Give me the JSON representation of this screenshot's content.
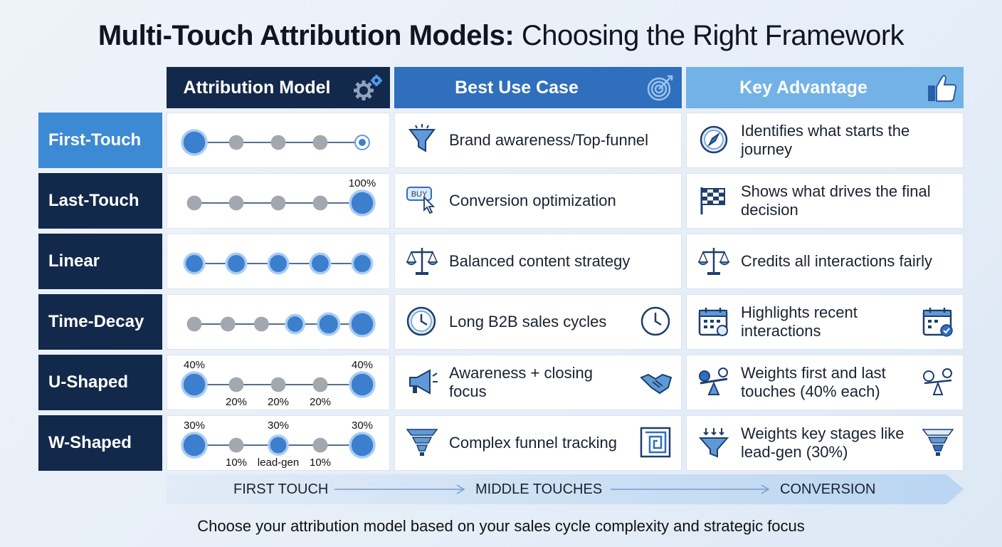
{
  "title": {
    "bold": "Multi-Touch Attribution Models:",
    "rest": " Choosing the Right Framework"
  },
  "headers": {
    "model": "Attribution Model",
    "use_case": "Best Use Case",
    "advantage": "Key Advantage"
  },
  "rows": [
    {
      "label": "First-Touch",
      "use_case": "Brand awareness/Top-funnel",
      "advantage": "Identifies what starts the journey",
      "icon_use": "funnel-icon",
      "icon_adv": "compass-icon",
      "dot_sizes": [
        1,
        0.4,
        0.4,
        0.4,
        0.4
      ],
      "labels_top": [],
      "labels_bottom": []
    },
    {
      "label": "Last-Touch",
      "use_case": "Conversion optimization",
      "advantage": "Shows what drives the final decision",
      "icon_use": "buy-button-icon",
      "icon_adv": "checkered-flag-icon",
      "dot_sizes": [
        0.4,
        0.4,
        0.4,
        0.4,
        1
      ],
      "labels_top": [
        "",
        "",
        "",
        "",
        "100%"
      ],
      "labels_bottom": []
    },
    {
      "label": "Linear",
      "use_case": "Balanced content strategy",
      "advantage": "Credits all interactions fairly",
      "icon_use": "scales-icon",
      "icon_adv": "scales-icon",
      "dot_sizes": [
        0.7,
        0.7,
        0.7,
        0.7,
        0.7
      ],
      "labels_top": [],
      "labels_bottom": []
    },
    {
      "label": "Time-Decay",
      "use_case": "Long B2B sales cycles",
      "advantage": "Highlights recent interactions",
      "icon_use": "clock-icon",
      "icon_adv": "calendar-icon",
      "dot_sizes": [
        0.4,
        0.4,
        0.4,
        0.6,
        0.8,
        1
      ],
      "labels_top": [],
      "labels_bottom": []
    },
    {
      "label": "U-Shaped",
      "use_case": "Awareness + closing focus",
      "advantage": "Weights first and last touches (40% each)",
      "icon_use": "megaphone-icon",
      "icon_adv": "balance-weights-icon",
      "dot_sizes": [
        1,
        0.4,
        0.4,
        0.4,
        1
      ],
      "labels_top": [
        "40%",
        "",
        "",
        "",
        "40%"
      ],
      "labels_bottom": [
        "",
        "20%",
        "20%",
        "20%",
        ""
      ]
    },
    {
      "label": "W-Shaped",
      "use_case": "Complex funnel tracking",
      "advantage": "Weights key stages like lead-gen (30%)",
      "icon_use": "funnel-stack-icon",
      "icon_adv": "funnel-arrows-icon",
      "dot_sizes": [
        1,
        0.4,
        0.65,
        0.4,
        1
      ],
      "labels_top": [
        "30%",
        "",
        "30%",
        "",
        "30%"
      ],
      "labels_bottom": [
        "",
        "10%",
        "lead-gen",
        "10%",
        ""
      ]
    }
  ],
  "flow": {
    "start": "FIRST TOUCH",
    "middle": "MIDDLE TOUCHES",
    "end": "CONVERSION"
  },
  "footer": "Choose your attribution model based on your sales cycle complexity and strategic focus",
  "colors": {
    "navy": "#13294b",
    "blue": "#2f6fbd",
    "light_blue": "#73b2e6",
    "dot": "#3d7fcf",
    "gray_dot": "#a3a8b0"
  }
}
